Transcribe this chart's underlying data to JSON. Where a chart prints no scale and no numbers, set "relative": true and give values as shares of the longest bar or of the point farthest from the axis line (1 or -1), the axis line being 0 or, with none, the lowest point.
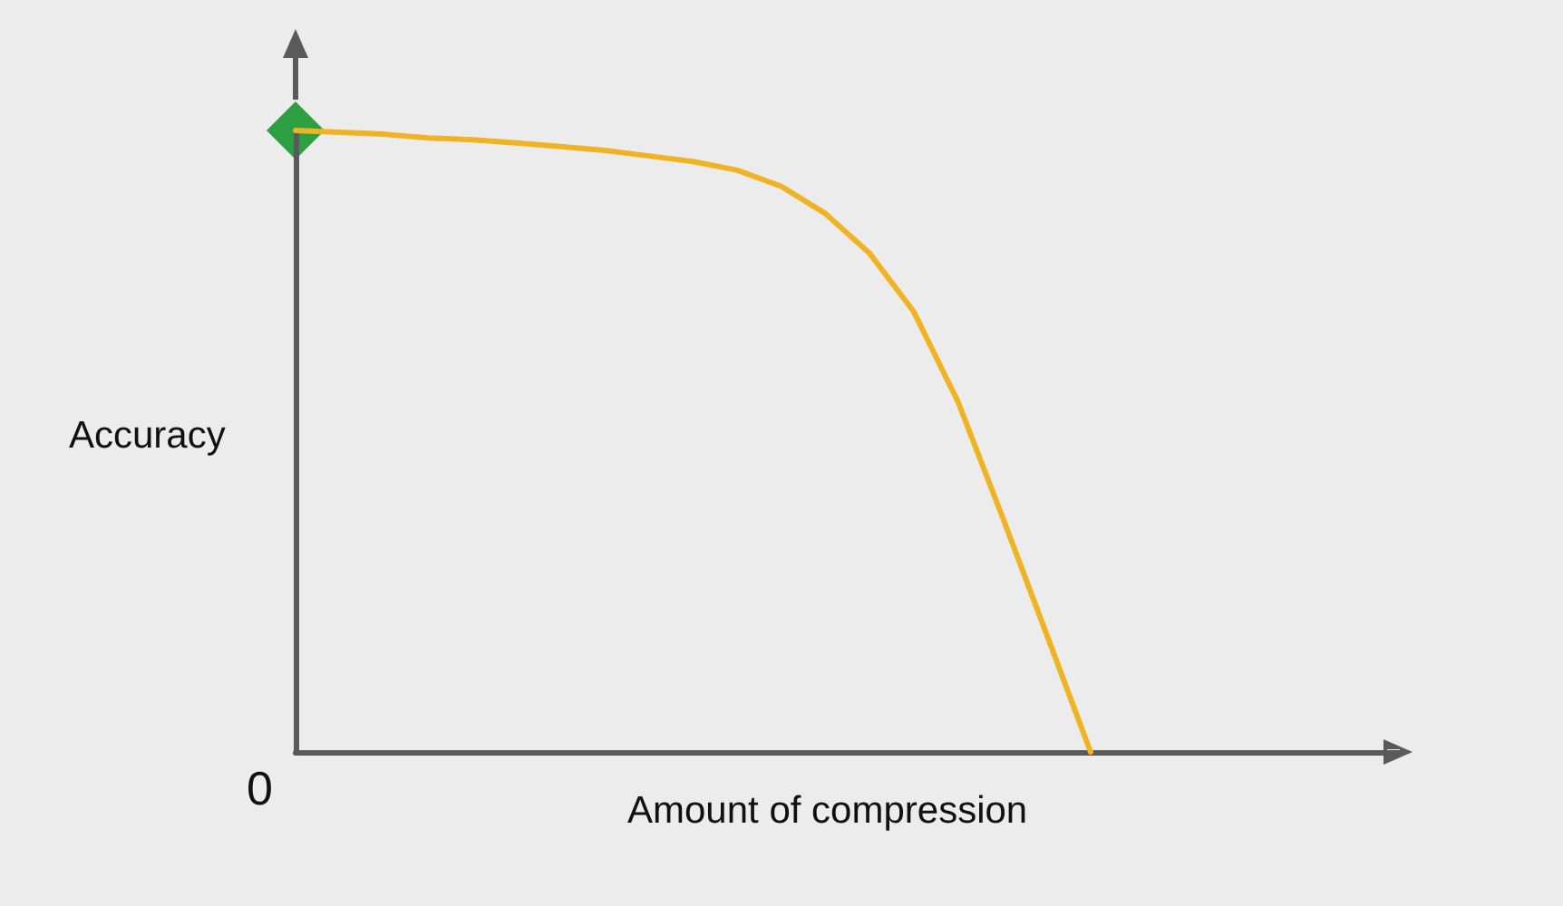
{
  "chart_data": {
    "type": "line",
    "relative": true,
    "xlabel": "Amount of compression",
    "ylabel": "Accuracy",
    "annotations": [
      "0"
    ],
    "grid": false,
    "categories": [
      null,
      null,
      null,
      null,
      null,
      null,
      null,
      null,
      null,
      null,
      null,
      null,
      null,
      null,
      null,
      null,
      null,
      null,
      null,
      null,
      null,
      null,
      null,
      null,
      null,
      null
    ],
    "series": [
      {
        "color": "#f0b323",
        "marker": "none",
        "line_style": "solid",
        "values": [
          1,
          0.997,
          0.994,
          0.988,
          0.985,
          0.98,
          0.974,
          0.968,
          0.959,
          0.95,
          0.936,
          0.91,
          0.866,
          0.802,
          0.708,
          0.563,
          0.379,
          0.19,
          0,
          null,
          null,
          null,
          null,
          null,
          null,
          null
        ]
      }
    ]
  }
}
